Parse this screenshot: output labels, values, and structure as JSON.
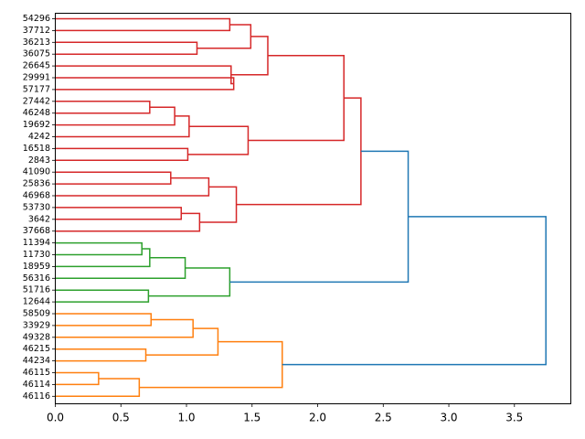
{
  "chart_data": {
    "type": "dendrogram",
    "orientation": "horizontal",
    "title": "",
    "xlabel": "",
    "ylabel": "",
    "xlim": [
      0,
      3.93
    ],
    "xticks": [
      0.0,
      0.5,
      1.0,
      1.5,
      2.0,
      2.5,
      3.0,
      3.5
    ],
    "xtick_labels": [
      "0.0",
      "0.5",
      "1.0",
      "1.5",
      "2.0",
      "2.5",
      "3.0",
      "3.5"
    ],
    "colors": {
      "red": "#d62728",
      "green": "#2ca02c",
      "orange": "#ff7f0e",
      "blue": "#1f77b4"
    },
    "leaves": [
      "54296",
      "37712",
      "36213",
      "36075",
      "26645",
      "29991",
      "57177",
      "27442",
      "46248",
      "19692",
      "4242",
      "16518",
      "2843",
      "41090",
      "25836",
      "46968",
      "53730",
      "3642",
      "37668",
      "11394",
      "11730",
      "18959",
      "56316",
      "51716",
      "12644",
      "58509",
      "33929",
      "49328",
      "46215",
      "44234",
      "46115",
      "46114",
      "46116"
    ],
    "merges": [
      {
        "id": "m1",
        "a": "L0",
        "b": "L1",
        "height": 1.33,
        "color": "red"
      },
      {
        "id": "m2",
        "a": "L2",
        "b": "L3",
        "height": 1.08,
        "color": "red"
      },
      {
        "id": "m3",
        "a": "m1",
        "b": "m2",
        "height": 1.49,
        "color": "red"
      },
      {
        "id": "m4",
        "a": "L5",
        "b": "L6",
        "height": 1.36,
        "color": "red"
      },
      {
        "id": "m5",
        "a": "L4",
        "b": "m4",
        "height": 1.34,
        "color": "red"
      },
      {
        "id": "m6",
        "a": "m3",
        "b": "m5",
        "height": 1.62,
        "color": "red"
      },
      {
        "id": "m7",
        "a": "L7",
        "b": "L8",
        "height": 0.72,
        "color": "red"
      },
      {
        "id": "m8",
        "a": "m7",
        "b": "L9",
        "height": 0.91,
        "color": "red"
      },
      {
        "id": "m9",
        "a": "m8",
        "b": "L10",
        "height": 1.02,
        "color": "red"
      },
      {
        "id": "m10",
        "a": "L11",
        "b": "L12",
        "height": 1.01,
        "color": "red"
      },
      {
        "id": "m11",
        "a": "m9",
        "b": "m10",
        "height": 1.47,
        "color": "red"
      },
      {
        "id": "m12",
        "a": "m6",
        "b": "m11",
        "height": 2.2,
        "color": "red"
      },
      {
        "id": "m13",
        "a": "L13",
        "b": "L14",
        "height": 0.88,
        "color": "red"
      },
      {
        "id": "m14",
        "a": "m13",
        "b": "L15",
        "height": 1.17,
        "color": "red"
      },
      {
        "id": "m15",
        "a": "L16",
        "b": "L17",
        "height": 0.96,
        "color": "red"
      },
      {
        "id": "m16",
        "a": "m15",
        "b": "L18",
        "height": 1.1,
        "color": "red"
      },
      {
        "id": "m17",
        "a": "m14",
        "b": "m16",
        "height": 1.38,
        "color": "red"
      },
      {
        "id": "m18",
        "a": "m12",
        "b": "m17",
        "height": 2.33,
        "color": "red"
      },
      {
        "id": "m19",
        "a": "L19",
        "b": "L20",
        "height": 0.66,
        "color": "green"
      },
      {
        "id": "m20",
        "a": "m19",
        "b": "L21",
        "height": 0.72,
        "color": "green"
      },
      {
        "id": "m21",
        "a": "m20",
        "b": "L22",
        "height": 0.99,
        "color": "green"
      },
      {
        "id": "m22",
        "a": "L23",
        "b": "L24",
        "height": 0.71,
        "color": "green"
      },
      {
        "id": "m23",
        "a": "m21",
        "b": "m22",
        "height": 1.33,
        "color": "green"
      },
      {
        "id": "m24",
        "a": "m18",
        "b": "m23",
        "height": 2.69,
        "color": "blue"
      },
      {
        "id": "m25",
        "a": "L25",
        "b": "L26",
        "height": 0.73,
        "color": "orange"
      },
      {
        "id": "m26",
        "a": "m25",
        "b": "L27",
        "height": 1.05,
        "color": "orange"
      },
      {
        "id": "m27",
        "a": "L28",
        "b": "L29",
        "height": 0.69,
        "color": "orange"
      },
      {
        "id": "m28",
        "a": "m26",
        "b": "m27",
        "height": 1.24,
        "color": "orange"
      },
      {
        "id": "m29",
        "a": "L30",
        "b": "L31",
        "height": 0.33,
        "color": "orange"
      },
      {
        "id": "m30",
        "a": "m29",
        "b": "L32",
        "height": 0.64,
        "color": "orange"
      },
      {
        "id": "m31",
        "a": "m28",
        "b": "m30",
        "height": 1.73,
        "color": "orange"
      },
      {
        "id": "m32",
        "a": "m24",
        "b": "m31",
        "height": 3.74,
        "color": "blue"
      }
    ]
  }
}
